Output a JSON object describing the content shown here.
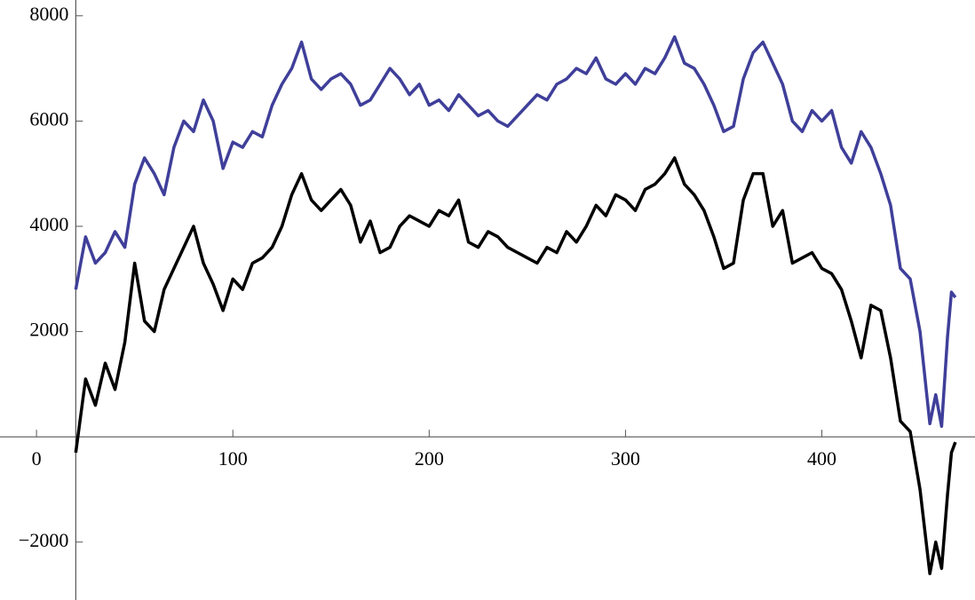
{
  "chart_data": {
    "type": "line",
    "x": [
      20,
      25,
      30,
      35,
      40,
      45,
      50,
      55,
      60,
      65,
      70,
      75,
      80,
      85,
      90,
      95,
      100,
      105,
      110,
      115,
      120,
      125,
      130,
      135,
      140,
      145,
      150,
      155,
      160,
      165,
      170,
      175,
      180,
      185,
      190,
      195,
      200,
      205,
      210,
      215,
      220,
      225,
      230,
      235,
      240,
      245,
      250,
      255,
      260,
      265,
      270,
      275,
      280,
      285,
      290,
      295,
      300,
      305,
      310,
      315,
      320,
      325,
      330,
      335,
      340,
      345,
      350,
      355,
      360,
      365,
      370,
      375,
      380,
      385,
      390,
      395,
      400,
      405,
      410,
      415,
      420,
      425,
      430,
      435,
      440,
      445,
      450,
      455,
      458,
      461,
      464,
      466,
      468
    ],
    "series": [
      {
        "name": "blue",
        "color": "#3f3f9a",
        "values": [
          2800,
          3800,
          3300,
          3500,
          3900,
          3600,
          4800,
          5300,
          5000,
          4600,
          5500,
          6000,
          5800,
          6400,
          6000,
          5100,
          5600,
          5500,
          5800,
          5700,
          6300,
          6700,
          7000,
          7500,
          6800,
          6600,
          6800,
          6900,
          6700,
          6300,
          6400,
          6700,
          7000,
          6800,
          6500,
          6700,
          6300,
          6400,
          6200,
          6500,
          6300,
          6100,
          6200,
          6000,
          5900,
          6100,
          6300,
          6500,
          6400,
          6700,
          6800,
          7000,
          6900,
          7200,
          6800,
          6700,
          6900,
          6700,
          7000,
          6900,
          7200,
          7600,
          7100,
          7000,
          6700,
          6300,
          5800,
          5900,
          6800,
          7300,
          7500,
          7100,
          6700,
          6000,
          5800,
          6200,
          6000,
          6200,
          5500,
          5200,
          5800,
          5500,
          5000,
          4400,
          3200,
          3000,
          2000,
          250,
          800,
          200,
          1900,
          2750,
          2650
        ]
      },
      {
        "name": "black",
        "color": "#000000",
        "values": [
          -300,
          1100,
          600,
          1400,
          900,
          1800,
          3300,
          2200,
          2000,
          2800,
          3200,
          3600,
          4000,
          3300,
          2900,
          2400,
          3000,
          2800,
          3300,
          3400,
          3600,
          4000,
          4600,
          5000,
          4500,
          4300,
          4500,
          4700,
          4400,
          3700,
          4100,
          3500,
          3600,
          4000,
          4200,
          4100,
          4000,
          4300,
          4200,
          4500,
          3700,
          3600,
          3900,
          3800,
          3600,
          3500,
          3400,
          3300,
          3600,
          3500,
          3900,
          3700,
          4000,
          4400,
          4200,
          4600,
          4500,
          4300,
          4700,
          4800,
          5000,
          5300,
          4800,
          4600,
          4300,
          3800,
          3200,
          3300,
          4500,
          5000,
          5000,
          4000,
          4300,
          3300,
          3400,
          3500,
          3200,
          3100,
          2800,
          2200,
          1500,
          2500,
          2400,
          1500,
          300,
          100,
          -1000,
          -2600,
          -2000,
          -2500,
          -1100,
          -300,
          -100
        ]
      }
    ],
    "xlim": [
      -10,
      478
    ],
    "ylim": [
      -3100,
      8300
    ],
    "xticks": [
      0,
      100,
      200,
      300,
      400
    ],
    "yticks": [
      {
        "value": -2000,
        "label": "−2000"
      },
      2000,
      4000,
      6000,
      8000
    ],
    "axes_origin": [
      20,
      0
    ],
    "grid": false
  }
}
